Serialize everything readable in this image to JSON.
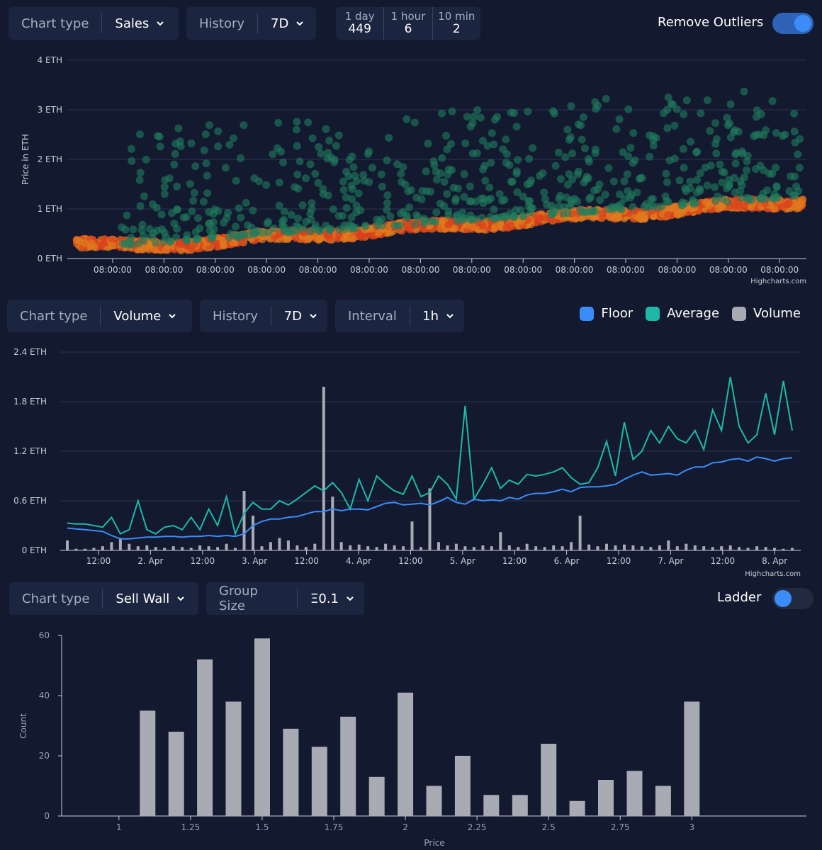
{
  "sales_panel": {
    "chart_type_label": "Chart type",
    "chart_type_value": "Sales",
    "history_label": "History",
    "history_value": "7D",
    "stats": [
      {
        "label": "1 day",
        "value": "449"
      },
      {
        "label": "1 hour",
        "value": "6"
      },
      {
        "label": "10 min",
        "value": "2"
      }
    ],
    "remove_outliers_label": "Remove Outliers",
    "remove_outliers_on": true
  },
  "volume_panel": {
    "chart_type_label": "Chart type",
    "chart_type_value": "Volume",
    "history_label": "History",
    "history_value": "7D",
    "interval_label": "Interval",
    "interval_value": "1h",
    "legend": [
      {
        "name": "Floor",
        "color": "#3b8cf6"
      },
      {
        "name": "Average",
        "color": "#1fb8a8"
      },
      {
        "name": "Volume",
        "color": "#a8abb4"
      }
    ]
  },
  "sellwall_panel": {
    "chart_type_label": "Chart type",
    "chart_type_value": "Sell Wall",
    "group_size_label": "Group Size",
    "group_size_value": "Ξ0.1",
    "ladder_label": "Ladder",
    "ladder_on": false
  },
  "credits": "Highcharts.com",
  "chart_data": [
    {
      "type": "scatter",
      "ylabel": "Price in ETH",
      "ylim": [
        0,
        4
      ],
      "y_ticks": [
        "0 ETH",
        "1 ETH",
        "2 ETH",
        "3 ETH",
        "4 ETH"
      ],
      "x_ticks": [
        "08:00:00",
        "08:00:00",
        "08:00:00",
        "08:00:00",
        "08:00:00",
        "08:00:00",
        "08:00:00",
        "08:00:00",
        "08:00:00",
        "08:00:00",
        "08:00:00",
        "08:00:00",
        "08:00:00",
        "08:00:00"
      ],
      "grid": true,
      "series": [
        {
          "color": "#1f8a64"
        },
        {
          "color": "#e06a1c"
        }
      ]
    },
    {
      "type": "line",
      "ylim": [
        0,
        2.4
      ],
      "y_ticks": [
        "0 ETH",
        "0.6 ETH",
        "1.2 ETH",
        "1.8 ETH",
        "2.4 ETH"
      ],
      "x_ticks": [
        "12:00",
        "2. Apr",
        "12:00",
        "3. Apr",
        "12:00",
        "4. Apr",
        "12:00",
        "5. Apr",
        "12:00",
        "6. Apr",
        "12:00",
        "7. Apr",
        "12:00",
        "8. Apr"
      ],
      "grid": true,
      "series": [
        {
          "name": "Floor",
          "color": "#3b8cf6",
          "values": [
            0.27,
            0.26,
            0.25,
            0.24,
            0.23,
            0.18,
            0.14,
            0.14,
            0.15,
            0.16,
            0.16,
            0.17,
            0.17,
            0.16,
            0.17,
            0.17,
            0.18,
            0.17,
            0.18,
            0.17,
            0.2,
            0.3,
            0.35,
            0.38,
            0.38,
            0.4,
            0.41,
            0.44,
            0.47,
            0.47,
            0.5,
            0.48,
            0.5,
            0.5,
            0.49,
            0.53,
            0.57,
            0.58,
            0.55,
            0.56,
            0.57,
            0.55,
            0.59,
            0.64,
            0.58,
            0.56,
            0.62,
            0.6,
            0.61,
            0.6,
            0.64,
            0.62,
            0.67,
            0.69,
            0.69,
            0.71,
            0.74,
            0.71,
            0.76,
            0.77,
            0.77,
            0.78,
            0.8,
            0.86,
            0.91,
            0.95,
            0.91,
            0.92,
            0.93,
            0.91,
            0.97,
            1.01,
            1.01,
            1.06,
            1.07,
            1.1,
            1.11,
            1.08,
            1.13,
            1.11,
            1.08,
            1.11,
            1.12
          ]
        },
        {
          "name": "Average",
          "color": "#1fb8a8",
          "values": [
            0.33,
            0.32,
            0.32,
            0.3,
            0.28,
            0.4,
            0.2,
            0.25,
            0.6,
            0.25,
            0.2,
            0.28,
            0.3,
            0.25,
            0.4,
            0.25,
            0.5,
            0.3,
            0.65,
            0.2,
            0.45,
            0.58,
            0.5,
            0.5,
            0.6,
            0.55,
            0.62,
            0.7,
            0.78,
            0.72,
            0.82,
            0.7,
            0.5,
            0.86,
            0.6,
            0.9,
            0.8,
            0.72,
            0.68,
            0.9,
            0.65,
            0.7,
            0.9,
            0.8,
            0.62,
            1.75,
            0.62,
            0.8,
            1.0,
            0.75,
            0.85,
            0.8,
            0.92,
            0.9,
            0.92,
            0.95,
            1.0,
            0.88,
            0.8,
            0.82,
            1.0,
            1.32,
            0.9,
            1.55,
            1.1,
            1.2,
            1.45,
            1.3,
            1.5,
            1.35,
            1.3,
            1.45,
            1.22,
            1.7,
            1.45,
            2.1,
            1.5,
            1.3,
            1.4,
            1.9,
            1.4,
            2.05,
            1.45
          ]
        },
        {
          "name": "Volume",
          "color": "#a8abb4",
          "values": [
            0.12,
            0.02,
            0.02,
            0.03,
            0.05,
            0.1,
            0.15,
            0.08,
            0.05,
            0.06,
            0.04,
            0.03,
            0.05,
            0.04,
            0.03,
            0.06,
            0.05,
            0.04,
            0.08,
            0.03,
            0.72,
            0.42,
            0.05,
            0.1,
            0.15,
            0.12,
            0.06,
            0.04,
            0.08,
            1.98,
            0.65,
            0.1,
            0.06,
            0.07,
            0.05,
            0.04,
            0.08,
            0.06,
            0.05,
            0.35,
            0.04,
            0.75,
            0.1,
            0.06,
            0.08,
            0.05,
            0.04,
            0.06,
            0.05,
            0.22,
            0.06,
            0.04,
            0.08,
            0.05,
            0.04,
            0.06,
            0.05,
            0.1,
            0.42,
            0.07,
            0.05,
            0.08,
            0.06,
            0.07,
            0.06,
            0.05,
            0.04,
            0.06,
            0.12,
            0.05,
            0.08,
            0.06,
            0.05,
            0.04,
            0.05,
            0.06,
            0.04,
            0.03,
            0.05,
            0.04,
            0.03,
            0.02,
            0.03
          ]
        }
      ]
    },
    {
      "type": "bar",
      "xlabel": "Price",
      "ylabel": "Count",
      "xlim": [
        0.8,
        3.4
      ],
      "ylim": [
        0,
        60
      ],
      "x_ticks": [
        "1",
        "1.25",
        "1.5",
        "1.75",
        "2",
        "2.25",
        "2.5",
        "2.75",
        "3"
      ],
      "y_ticks": [
        "0",
        "20",
        "40",
        "60"
      ],
      "x": [
        1.1,
        1.2,
        1.3,
        1.4,
        1.5,
        1.6,
        1.7,
        1.8,
        1.9,
        2.0,
        2.1,
        2.2,
        2.3,
        2.4,
        2.5,
        2.6,
        2.7,
        2.8,
        2.9,
        3.0
      ],
      "values": [
        35,
        28,
        52,
        38,
        59,
        29,
        23,
        33,
        13,
        41,
        10,
        20,
        7,
        7,
        24,
        5,
        12,
        15,
        10,
        38
      ],
      "color": "#a8abb4",
      "grid": false
    }
  ]
}
